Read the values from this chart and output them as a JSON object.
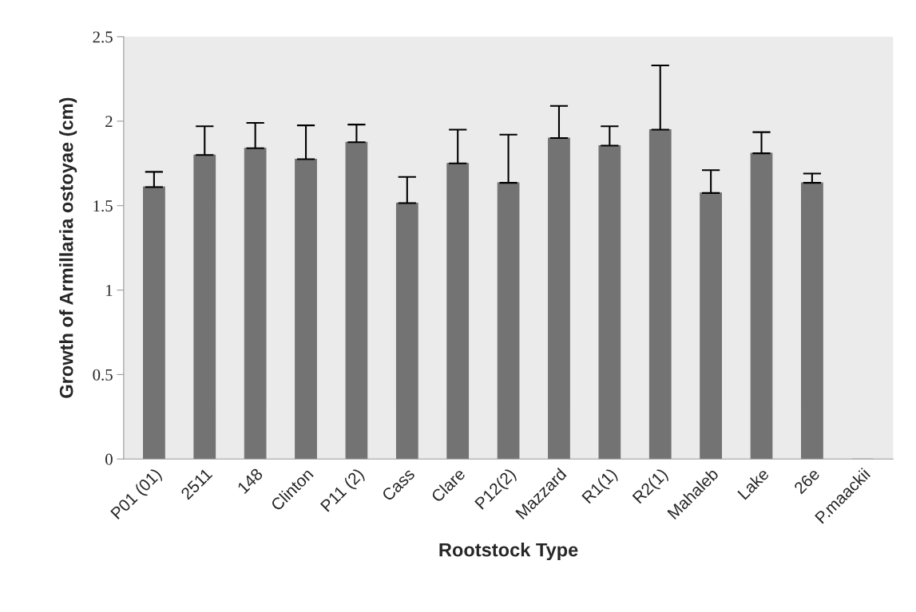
{
  "chart_data": {
    "type": "bar",
    "xlabel": "Rootstock Type",
    "ylabel": "Growth of Armillaria ostoyae (cm)",
    "categories": [
      "P01 (01)",
      "2511",
      "148",
      "Clinton",
      "P11 (2)",
      "Cass",
      "Clare",
      "P12(2)",
      "Mazzard",
      "R1(1)",
      "R2(1)",
      "Mahaleb",
      "Lake",
      "26e",
      "P.maackii"
    ],
    "values": [
      1.61,
      1.8,
      1.84,
      1.775,
      1.875,
      1.515,
      1.75,
      1.635,
      1.9,
      1.855,
      1.95,
      1.575,
      1.81,
      1.635,
      0
    ],
    "errors": [
      [
        1.61,
        1.7
      ],
      [
        1.8,
        1.97
      ],
      [
        1.84,
        1.99
      ],
      [
        1.775,
        1.975
      ],
      [
        1.875,
        1.98
      ],
      [
        1.515,
        1.67
      ],
      [
        1.75,
        1.95
      ],
      [
        1.635,
        1.92
      ],
      [
        1.9,
        2.09
      ],
      [
        1.855,
        1.97
      ],
      [
        1.95,
        2.33
      ],
      [
        1.575,
        1.71
      ],
      [
        1.81,
        1.935
      ],
      [
        1.635,
        1.69
      ],
      null
    ],
    "color": "#737373",
    "ylim": [
      0,
      2.5
    ],
    "yticks": [
      0,
      0.5,
      1,
      1.5,
      2,
      2.5
    ],
    "grid": false,
    "legend": false
  }
}
